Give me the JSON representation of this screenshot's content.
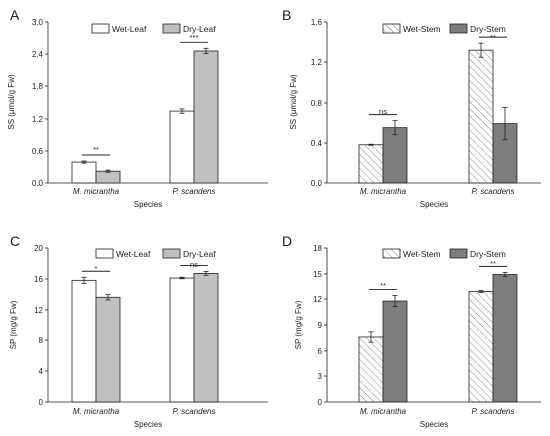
{
  "colors": {
    "wet_leaf": "#ffffff",
    "dry_leaf": "#c0c0c0",
    "wet_stem_hatch": "#8a8a8a",
    "dry_stem": "#7d7d7d",
    "axis": "#222222"
  },
  "chart_data": [
    {
      "panel": "A",
      "type": "bar",
      "categories": [
        "M. micrantha",
        "P. scandens"
      ],
      "series": [
        {
          "name": "Wet-Leaf",
          "values": [
            0.39,
            1.34
          ],
          "errors": [
            0.02,
            0.04
          ],
          "style": "white"
        },
        {
          "name": "Dry-Leaf",
          "values": [
            0.22,
            2.46
          ],
          "errors": [
            0.02,
            0.05
          ],
          "style": "lightgray"
        }
      ],
      "xlabel": "Species",
      "ylabel": "SS (μmol/g Fw)",
      "ylim": [
        0,
        3.0
      ],
      "yticks": [
        "0.0",
        "0.6",
        "1.2",
        "1.8",
        "2.4",
        "3.0"
      ],
      "significance": [
        "**",
        "***"
      ],
      "legend": "top-left",
      "grid": false
    },
    {
      "panel": "B",
      "type": "bar",
      "categories": [
        "M. micrantha",
        "P. scandens"
      ],
      "series": [
        {
          "name": "Wet-Stem",
          "values": [
            0.38,
            1.32
          ],
          "errors": [
            0.005,
            0.07
          ],
          "style": "hatched"
        },
        {
          "name": "Dry-Stem",
          "values": [
            0.55,
            0.59
          ],
          "errors": [
            0.07,
            0.16
          ],
          "style": "darkgray"
        }
      ],
      "xlabel": "Species",
      "ylabel": "SS (μmol/g Fw)",
      "ylim": [
        0,
        1.6
      ],
      "yticks": [
        "0.0",
        "0.4",
        "0.8",
        "1.2",
        "1.6"
      ],
      "significance": [
        "ns",
        "**"
      ],
      "legend": "top-center",
      "grid": false
    },
    {
      "panel": "C",
      "type": "bar",
      "categories": [
        "M. micrantha",
        "P. scandens"
      ],
      "series": [
        {
          "name": "Wet-Leaf",
          "values": [
            15.8,
            16.1
          ],
          "errors": [
            0.4,
            0.1
          ],
          "style": "white"
        },
        {
          "name": "Dry-Leaf",
          "values": [
            13.6,
            16.7
          ],
          "errors": [
            0.35,
            0.25
          ],
          "style": "lightgray"
        }
      ],
      "xlabel": "Species",
      "ylabel": "SP (mg/g Fw)",
      "ylim": [
        0,
        20
      ],
      "yticks": [
        "0",
        "4",
        "8",
        "12",
        "16",
        "20"
      ],
      "significance": [
        "*",
        "ns"
      ],
      "legend": "top-center",
      "grid": false
    },
    {
      "panel": "D",
      "type": "bar",
      "categories": [
        "M. micrantha",
        "P. scandens"
      ],
      "series": [
        {
          "name": "Wet-Stem",
          "values": [
            7.6,
            12.9
          ],
          "errors": [
            0.6,
            0.12
          ],
          "style": "hatched"
        },
        {
          "name": "Dry-Stem",
          "values": [
            11.8,
            14.9
          ],
          "errors": [
            0.65,
            0.25
          ],
          "style": "darkgray"
        }
      ],
      "xlabel": "Species",
      "ylabel": "SP (mg/g Fw)",
      "ylim": [
        0,
        18
      ],
      "yticks": [
        "0",
        "3",
        "6",
        "9",
        "12",
        "15",
        "18"
      ],
      "significance": [
        "**",
        "**"
      ],
      "legend": "top-center",
      "grid": false
    }
  ]
}
